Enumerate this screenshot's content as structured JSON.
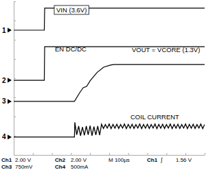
{
  "chart_data": {
    "type": "line",
    "xlim": [
      0,
      1000
    ],
    "ylim": [
      -4,
      4
    ],
    "xticks": [
      0,
      100,
      200,
      300,
      400,
      500,
      600,
      700,
      800,
      900,
      1000
    ],
    "yticks": [
      -4,
      -3,
      -2,
      -1,
      0,
      1,
      2,
      3,
      4
    ],
    "grid": false,
    "tick_labels": false,
    "series": [
      {
        "name": "VIN (3.6V)",
        "channel": 1,
        "ground": 2.5,
        "color": "#000000",
        "line_style": "solid",
        "x": [
          0,
          160,
          162,
          1000
        ],
        "values": [
          2.5,
          2.5,
          3.65,
          3.65
        ]
      },
      {
        "name": "EN DC/DC",
        "channel": 2,
        "ground": -0.11,
        "color": "#000000",
        "line_style": "solid",
        "x": [
          0,
          160,
          162,
          1000
        ],
        "values": [
          -0.11,
          -0.11,
          1.64,
          1.64
        ]
      },
      {
        "name": "VOUT = VCORE (1.3V)",
        "channel": 3,
        "ground": -1.21,
        "color": "#000000",
        "line_style": "solid",
        "x": [
          0,
          318,
          346,
          364,
          382,
          400,
          436,
          471,
          507,
          525,
          1000
        ],
        "values": [
          -1.21,
          -1.21,
          -0.75,
          -0.5,
          -0.43,
          -0.14,
          0.29,
          0.57,
          0.68,
          0.71,
          0.71
        ]
      },
      {
        "name": "COIL CURRENT",
        "channel": 4,
        "ground": -3.07,
        "color": "#000000",
        "line_style": "solid",
        "x": [
          0,
          318,
          320,
          330,
          340,
          350,
          360,
          370,
          380,
          390,
          400,
          410,
          420,
          430,
          440,
          450,
          460,
          470,
          480,
          490,
          500,
          510,
          520,
          530,
          540,
          550,
          560,
          570,
          580,
          590,
          600,
          610,
          620,
          630,
          640,
          650,
          660,
          670,
          680,
          690,
          700,
          710,
          720,
          730,
          740,
          750,
          760,
          770,
          780,
          790,
          800,
          810,
          820,
          830,
          840,
          850,
          860,
          870,
          880,
          890,
          900,
          910,
          920,
          930,
          940,
          950,
          960,
          970,
          980,
          990,
          1000
        ],
        "values": [
          -3.07,
          -3.07,
          -2.3,
          -2.95,
          -2.5,
          -3.0,
          -2.55,
          -2.98,
          -2.5,
          -2.95,
          -2.48,
          -3.0,
          -2.52,
          -2.96,
          -2.5,
          -2.97,
          -2.4,
          -2.62,
          -2.42,
          -2.6,
          -2.39,
          -2.63,
          -2.41,
          -2.61,
          -2.4,
          -2.62,
          -2.42,
          -2.6,
          -2.39,
          -2.63,
          -2.41,
          -2.61,
          -2.4,
          -2.62,
          -2.42,
          -2.6,
          -2.39,
          -2.63,
          -2.41,
          -2.61,
          -2.4,
          -2.62,
          -2.42,
          -2.6,
          -2.39,
          -2.63,
          -2.41,
          -2.61,
          -2.4,
          -2.62,
          -2.42,
          -2.6,
          -2.39,
          -2.63,
          -2.41,
          -2.61,
          -2.4,
          -2.62,
          -2.42,
          -2.6,
          -2.39,
          -2.63,
          -2.41,
          -2.61,
          -2.4,
          -2.62,
          -2.42,
          -2.6,
          -2.39,
          -2.63,
          -2.41
        ]
      }
    ],
    "readout": [
      {
        "channel": "Ch1",
        "scale": "2.00 V"
      },
      {
        "channel": "Ch2",
        "scale": "2.00 V"
      },
      {
        "channel": "Ch3",
        "scale": "750mV"
      },
      {
        "channel": "Ch4",
        "scale": "500mA"
      }
    ],
    "timebase": "M 100µs",
    "trigger": {
      "source": "Ch1",
      "symbol": "∫",
      "level": "1.56 V"
    }
  }
}
